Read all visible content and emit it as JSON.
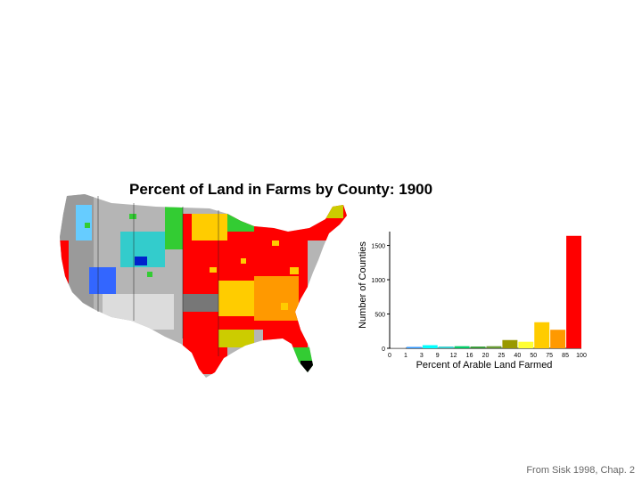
{
  "title": "Percent of Land in Farms by County: 1900",
  "credit": "From Sisk 1998, Chap. 2",
  "map": {
    "description_colors": [
      "#ff0000",
      "#ffcc00",
      "#ff9900",
      "#cccc00",
      "#33cc33",
      "#00cccc",
      "#0033cc",
      "#888888",
      "#000000"
    ]
  },
  "chart_data": {
    "type": "bar",
    "title": "",
    "xlabel": "Percent of Arable Land Farmed",
    "ylabel": "Number of Counties",
    "x_ticks": [
      "0",
      "1",
      "3",
      "9",
      "12",
      "16",
      "20",
      "25",
      "40",
      "50",
      "75",
      "85",
      "100"
    ],
    "y_ticks": [
      "0",
      "500",
      "1000",
      "1500"
    ],
    "ylim": [
      0,
      1650
    ],
    "bins": [
      {
        "from": "0",
        "to": "1",
        "value": 5,
        "color": "#bfbfbf"
      },
      {
        "from": "1",
        "to": "3",
        "value": 20,
        "color": "#3399ff"
      },
      {
        "from": "3",
        "to": "9",
        "value": 45,
        "color": "#00ffff"
      },
      {
        "from": "9",
        "to": "12",
        "value": 25,
        "color": "#33cccc"
      },
      {
        "from": "12",
        "to": "16",
        "value": 30,
        "color": "#00cc66"
      },
      {
        "from": "16",
        "to": "20",
        "value": 25,
        "color": "#339933"
      },
      {
        "from": "20",
        "to": "25",
        "value": 30,
        "color": "#669933"
      },
      {
        "from": "25",
        "to": "40",
        "value": 120,
        "color": "#999900"
      },
      {
        "from": "40",
        "to": "50",
        "value": 95,
        "color": "#ffff33"
      },
      {
        "from": "50",
        "to": "75",
        "value": 380,
        "color": "#ffcc00"
      },
      {
        "from": "75",
        "to": "85",
        "value": 270,
        "color": "#ff9900"
      },
      {
        "from": "85",
        "to": "100",
        "value": 1640,
        "color": "#ff0000"
      }
    ],
    "grid": false,
    "legend": "none"
  }
}
